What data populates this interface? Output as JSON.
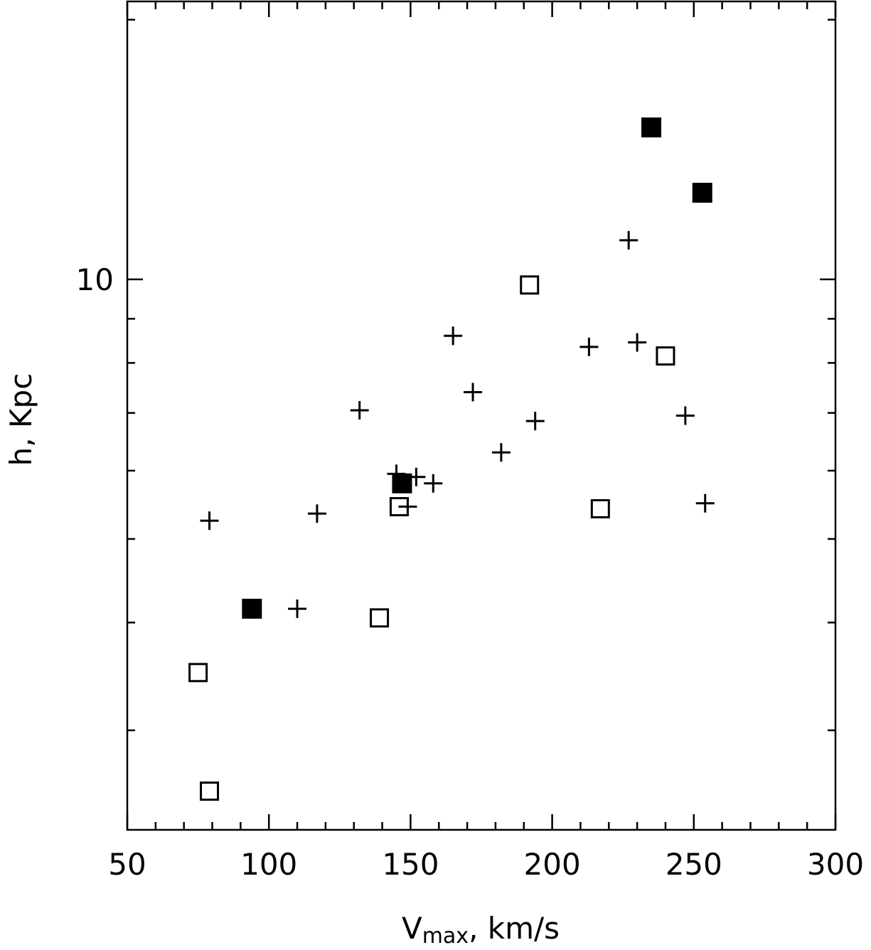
{
  "chart_data": {
    "type": "scatter",
    "title": "",
    "xlabel": "",
    "xlabel_main": "V",
    "xlabel_sub": "max",
    "xlabel_rest": ", km/s",
    "ylabel": "h, Kpc",
    "xlim": [
      50,
      300
    ],
    "ylim": [
      2.3,
      21
    ],
    "yscale": "log",
    "grid": false,
    "x_ticks": [
      50,
      100,
      150,
      200,
      250,
      300
    ],
    "x_tick_labels": [
      "50",
      "100",
      "150",
      "200",
      "250",
      "300"
    ],
    "y_ticks": [
      10
    ],
    "y_tick_labels": [
      "10"
    ],
    "y_minor_ticks": [
      3,
      4,
      5,
      6,
      7,
      8,
      9,
      20
    ],
    "series": [
      {
        "marker": "plus",
        "color": "#000000",
        "x": [
          79,
          110,
          117,
          132,
          145,
          149,
          152,
          158,
          165,
          172,
          182,
          194,
          213,
          227,
          230,
          247,
          254
        ],
        "y": [
          5.25,
          4.15,
          5.35,
          7.05,
          5.95,
          5.45,
          5.9,
          5.8,
          8.6,
          7.4,
          6.3,
          6.85,
          8.35,
          11.1,
          8.45,
          6.95,
          5.5
        ]
      },
      {
        "marker": "open-square",
        "color": "#000000",
        "x": [
          75,
          79,
          139,
          146,
          192,
          217,
          240
        ],
        "y": [
          3.5,
          2.55,
          4.05,
          5.45,
          9.85,
          5.42,
          8.15
        ]
      },
      {
        "marker": "filled-square",
        "color": "#000000",
        "x": [
          94,
          147,
          235,
          253
        ],
        "y": [
          4.15,
          5.8,
          15.0,
          12.6
        ]
      }
    ]
  }
}
